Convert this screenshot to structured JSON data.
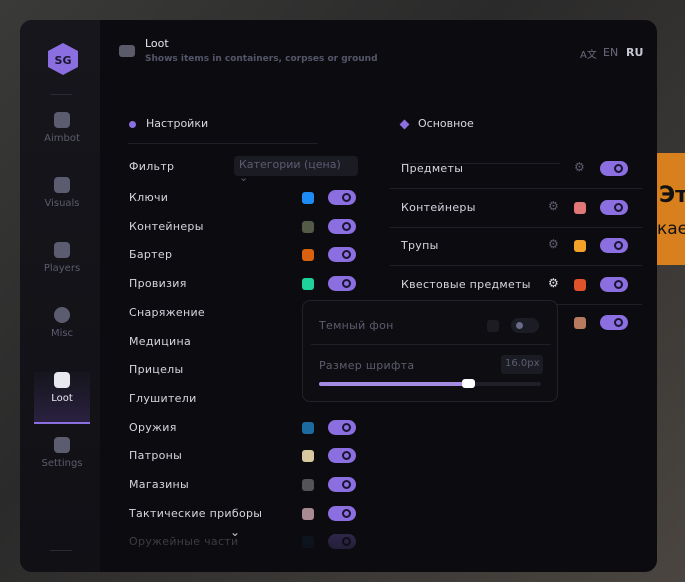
{
  "background": {
    "text1": "Эт",
    "text2": "кае"
  },
  "sidebar": {
    "items": [
      {
        "label": "Aimbot",
        "icon": "alien-icon"
      },
      {
        "label": "Visuals",
        "icon": "vr-goggles-icon"
      },
      {
        "label": "Players",
        "icon": "users-icon"
      },
      {
        "label": "Misc",
        "icon": "dots-circle-icon"
      },
      {
        "label": "Loot",
        "icon": "toolbox-icon",
        "active": true
      },
      {
        "label": "Settings",
        "icon": "list-icon"
      }
    ]
  },
  "header": {
    "title": "Loot",
    "subtitle": "Shows items in containers, corpses or ground",
    "lang": [
      "EN",
      "RU"
    ],
    "active_lang": "RU"
  },
  "settings": {
    "title": "Настройки",
    "filter_label": "Фильтр",
    "filter_value": "Категории (цена)",
    "items": [
      {
        "label": "Ключи",
        "color": "#1e8cf5",
        "on": true
      },
      {
        "label": "Контейнеры",
        "color": "#545a48",
        "on": true
      },
      {
        "label": "Бартер",
        "color": "#d8620e",
        "on": true
      },
      {
        "label": "Провизия",
        "color": "#1fd19a",
        "on": true
      },
      {
        "label": "Снаряжение"
      },
      {
        "label": "Медицина"
      },
      {
        "label": "Прицелы"
      },
      {
        "label": "Глушители"
      },
      {
        "label": "Оружия",
        "color": "#1b6aa0",
        "on": true
      },
      {
        "label": "Патроны",
        "color": "#d9c8a0",
        "on": true
      },
      {
        "label": "Магазины",
        "color": "#545458",
        "on": true
      },
      {
        "label": "Тактические приборы",
        "color": "#a88a92",
        "on": true
      },
      {
        "label": "Оружейные части",
        "color": "#15304a",
        "on": true
      }
    ]
  },
  "main": {
    "title": "Основное",
    "items": [
      {
        "label": "Предметы",
        "on": true
      },
      {
        "label": "Контейнеры",
        "color": "#e07878",
        "on": true
      },
      {
        "label": "Трупы",
        "color": "#f5a22a",
        "on": true
      },
      {
        "label": "Квестовые предметы",
        "color": "#e0522a",
        "on": true
      },
      {
        "label": "",
        "color": "#b87a5e",
        "on": true
      }
    ]
  },
  "popup": {
    "dark_bg_label": "Темный фон",
    "font_size_label": "Размер шрифта",
    "font_size_value": "16.0px",
    "font_size_fraction": 0.67
  }
}
